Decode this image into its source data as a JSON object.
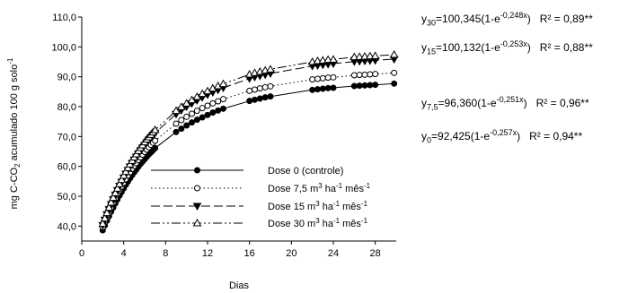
{
  "chart_data": {
    "type": "line",
    "xlabel": "Dias",
    "ylabel": {
      "pre": "mg C-CO",
      "sub": "2",
      "mid": " acumulado 100 g solo",
      "sup": "-1"
    },
    "xlim": [
      0,
      30
    ],
    "ylim": [
      35,
      110
    ],
    "x_ticks": [
      0,
      4,
      8,
      12,
      16,
      20,
      24,
      28
    ],
    "y_ticks": [
      40,
      50,
      60,
      70,
      80,
      90,
      100,
      110
    ],
    "x_tick_labels": [
      "0",
      "4",
      "8",
      "12",
      "16",
      "20",
      "24",
      "28"
    ],
    "y_tick_labels": [
      "40,0",
      "50,0",
      "60,0",
      "70,0",
      "80,0",
      "90,0",
      "100,0",
      "110,0"
    ],
    "grid": false,
    "legend_position": "center",
    "x": [
      2,
      2.2,
      2.4,
      2.6,
      2.8,
      3,
      3.2,
      3.4,
      3.6,
      3.8,
      4,
      4.2,
      4.4,
      4.6,
      4.8,
      5,
      5.2,
      5.4,
      5.6,
      5.8,
      6,
      6.2,
      6.4,
      6.6,
      6.8,
      7,
      9,
      9.5,
      10,
      10.5,
      11,
      11.5,
      12,
      12.5,
      13,
      13.5,
      16,
      16.5,
      17,
      17.5,
      18,
      22,
      22.5,
      23,
      23.5,
      24,
      26,
      26.5,
      27,
      27.5,
      28,
      29.8
    ],
    "series": [
      {
        "name": "Dose 0 (controle)",
        "legend_pre": "Dose 0 (controle)",
        "legend_sup1": "",
        "legend_mid": "",
        "legend_sup2": "",
        "marker": "filled-circle",
        "dash": "",
        "values": [
          38.6,
          40.2,
          41.8,
          43.3,
          44.8,
          46.2,
          47.6,
          48.9,
          50.2,
          51.4,
          52.6,
          53.8,
          54.9,
          56.0,
          57.0,
          58.0,
          58.9,
          59.9,
          60.8,
          61.6,
          62.4,
          63.2,
          64.0,
          64.7,
          65.4,
          66.1,
          71.5,
          72.6,
          73.7,
          74.7,
          75.6,
          76.4,
          77.2,
          78.0,
          78.7,
          79.3,
          81.9,
          82.3,
          82.7,
          83.1,
          83.4,
          85.6,
          85.8,
          86.0,
          86.2,
          86.3,
          86.9,
          87.0,
          87.1,
          87.2,
          87.3,
          87.7
        ],
        "equation": {
          "y_sub": "0",
          "body": "=92,425(1-e",
          "exp": "-0,257x",
          "close": ")",
          "r2": "R² = 0,94**"
        }
      },
      {
        "name": "Dose 7,5 m³ ha⁻¹ mês⁻¹",
        "legend_pre": "Dose 7,5 m",
        "legend_sup1": "3",
        "legend_mid": " ha",
        "legend_sup2": "-1",
        "legend_post": " mês",
        "legend_sup3": "-1",
        "marker": "open-circle",
        "dash": "1.5,3",
        "values": [
          39.6,
          41.3,
          43.0,
          44.6,
          46.2,
          47.7,
          49.2,
          50.6,
          51.9,
          53.2,
          54.5,
          55.7,
          56.9,
          58.0,
          59.1,
          60.1,
          61.1,
          62.1,
          63.0,
          63.9,
          64.8,
          65.6,
          66.4,
          67.2,
          67.9,
          68.6,
          74.3,
          75.5,
          76.6,
          77.6,
          78.6,
          79.5,
          80.3,
          81.1,
          81.8,
          82.5,
          85.3,
          85.7,
          86.1,
          86.5,
          86.8,
          89.1,
          89.3,
          89.5,
          89.7,
          89.8,
          90.5,
          90.6,
          90.7,
          90.8,
          90.9,
          91.3
        ],
        "equation": {
          "y_sub": "7,5",
          "body": "=96,360(1-e",
          "exp": "-0,251x",
          "close": ")",
          "r2": "R² = 0,96**"
        }
      },
      {
        "name": "Dose 15 m³ ha⁻¹ mês⁻¹",
        "legend_pre": "Dose 15 m",
        "legend_sup1": "3",
        "legend_mid": " ha",
        "legend_sup2": "-1",
        "legend_post": " mês",
        "legend_sup3": "-1",
        "marker": "filled-triangle-down",
        "dash": "10,4",
        "values": [
          40.3,
          42.1,
          43.9,
          45.6,
          47.3,
          48.9,
          50.5,
          52.0,
          53.4,
          54.8,
          56.2,
          57.5,
          58.7,
          59.9,
          61.1,
          62.2,
          63.2,
          64.3,
          65.3,
          66.2,
          67.1,
          68.0,
          68.9,
          69.7,
          70.5,
          71.2,
          77.5,
          78.8,
          80.0,
          81.1,
          82.1,
          83.1,
          84.0,
          84.8,
          85.6,
          86.3,
          89.4,
          89.9,
          90.3,
          90.7,
          91.1,
          93.6,
          93.8,
          94.0,
          94.2,
          94.4,
          95.1,
          95.2,
          95.3,
          95.4,
          95.5,
          95.9
        ],
        "equation": {
          "y_sub": "15",
          "body": "=100,132(1-e",
          "exp": "-0,253x",
          "close": ")",
          "r2": "R² = 0,88**"
        }
      },
      {
        "name": "Dose 30 m³ ha⁻¹ mês⁻¹",
        "legend_pre": "Dose 30 m",
        "legend_sup1": "3",
        "legend_mid": " ha",
        "legend_sup2": "-1",
        "legend_post": " mês",
        "legend_sup3": "-1",
        "marker": "open-triangle-up",
        "dash": "10,3,2,3,2,3",
        "values": [
          40.8,
          42.6,
          44.4,
          46.2,
          47.9,
          49.5,
          51.1,
          52.6,
          54.1,
          55.5,
          56.9,
          58.2,
          59.5,
          60.7,
          61.9,
          63.0,
          64.1,
          65.2,
          66.2,
          67.1,
          68.1,
          69.0,
          69.8,
          70.6,
          71.4,
          72.2,
          78.6,
          79.9,
          81.1,
          82.2,
          83.3,
          84.3,
          85.2,
          86.1,
          86.9,
          87.6,
          90.8,
          91.3,
          91.7,
          92.1,
          92.5,
          95.0,
          95.3,
          95.5,
          95.7,
          95.8,
          96.6,
          96.7,
          96.8,
          96.9,
          97.0,
          97.4
        ],
        "equation": {
          "y_sub": "30",
          "body": "=100,345(1-e",
          "exp": "-0,248x",
          "close": ")",
          "r2": "R² = 0,89**"
        }
      }
    ]
  }
}
